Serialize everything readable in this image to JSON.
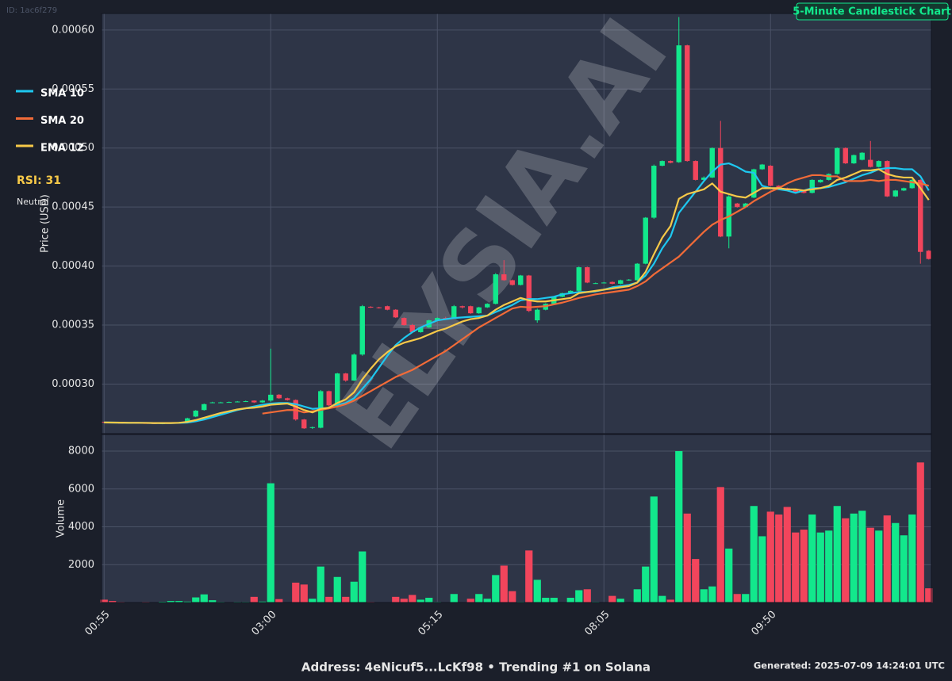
{
  "id_label": "ID: 1ac6f279",
  "watermark": "ELYSIA.AI",
  "indicators": {
    "rsi": "RSI: 31",
    "status": "Neutral"
  },
  "footer": {
    "address": "Address: 4eNicuf5...LcKf98 • Trending #1 on Solana",
    "generated": "Generated: 2025-07-09 14:24:01 UTC"
  },
  "chart_data": [
    {
      "type": "candlestick",
      "title": "5-Minute Candlestick Chart",
      "ylabel": "Price (USD)",
      "legend": "left",
      "grid": true,
      "up_color": "#12e88c",
      "down_color": "#f2455c",
      "categories": [
        "00:55",
        null,
        null,
        null,
        null,
        null,
        null,
        null,
        null,
        null,
        null,
        null,
        null,
        null,
        null,
        null,
        null,
        null,
        null,
        null,
        "03:00",
        null,
        null,
        null,
        null,
        null,
        null,
        null,
        null,
        null,
        null,
        null,
        null,
        null,
        null,
        null,
        null,
        null,
        null,
        null,
        "05:15",
        null,
        null,
        null,
        null,
        null,
        null,
        null,
        null,
        null,
        null,
        null,
        null,
        null,
        null,
        null,
        null,
        null,
        null,
        null,
        "08:05",
        null,
        null,
        null,
        null,
        null,
        null,
        null,
        null,
        null,
        null,
        null,
        null,
        null,
        null,
        null,
        null,
        null,
        null,
        null,
        "09:50",
        null,
        null,
        null,
        null,
        null,
        null,
        null,
        null,
        null,
        null,
        null,
        null,
        null,
        null,
        null,
        null,
        null,
        null,
        null
      ],
      "open": [
        0.000268,
        0.0002675,
        0.0002672,
        0.000267,
        0.0002672,
        0.000267,
        0.0002668,
        0.0002665,
        0.0002668,
        0.0002672,
        0.0002678,
        0.0002725,
        0.000278,
        0.000284,
        0.0002845,
        0.0002845,
        0.000285,
        0.0002852,
        0.000286,
        0.0002845,
        0.000286,
        0.000291,
        0.000288,
        0.0002865,
        0.00027,
        0.000263,
        0.000263,
        0.000294,
        0.000282,
        0.000309,
        0.000303,
        0.000325,
        0.0003655,
        0.000365,
        0.000366,
        0.000363,
        0.000356,
        0.00035,
        0.000344,
        0.000348,
        0.000354,
        0.000356,
        0.000356,
        0.000366,
        0.000366,
        0.00036,
        0.000365,
        0.000368,
        0.000393,
        0.000388,
        0.000384,
        0.000392,
        0.000354,
        0.000363,
        0.000368,
        0.000374,
        0.000377,
        0.000379,
        0.000399,
        0.0003855,
        0.000386,
        0.0003865,
        0.000385,
        0.000388,
        0.000388,
        0.000402,
        0.000441,
        0.000485,
        0.000489,
        0.000488,
        0.000587,
        0.000489,
        0.000473,
        0.000475,
        0.0005,
        0.000425,
        0.000453,
        0.00045,
        0.000458,
        0.000482,
        0.000485,
        0.000468,
        0.000466,
        0.000465,
        0.000464,
        0.000462,
        0.000471,
        0.000473,
        0.000478,
        0.0005,
        0.000487,
        0.00049,
        0.00049,
        0.000484,
        0.000489,
        0.000459,
        0.000464,
        0.000466,
        0.000473,
        0.000413
      ],
      "high": [
        0.000268,
        0.000268,
        0.0002675,
        0.0002675,
        0.0002675,
        0.0002672,
        0.000267,
        0.000267,
        0.0002675,
        0.000268,
        0.0002715,
        0.000278,
        0.0002835,
        0.000285,
        0.000285,
        0.0002852,
        0.0002856,
        0.000286,
        0.0002862,
        0.0002865,
        0.00033,
        0.0002915,
        0.0002885,
        0.000287,
        0.0002705,
        0.000264,
        0.000295,
        0.0002945,
        0.0003095,
        0.0003095,
        0.000326,
        0.000367,
        0.000366,
        0.0003655,
        0.0003665,
        0.0003635,
        0.0003565,
        0.000351,
        0.0003485,
        0.0003545,
        0.0003565,
        0.000357,
        0.000367,
        0.0003665,
        0.0003665,
        0.0003655,
        0.0003685,
        0.000394,
        0.000405,
        0.0003885,
        0.0003925,
        0.0003925,
        0.000364,
        0.0003685,
        0.0003745,
        0.0003775,
        0.0003795,
        0.0003995,
        0.0003995,
        0.000386,
        0.0003865,
        0.000387,
        0.0003885,
        0.000389,
        0.0004025,
        0.0004415,
        0.000486,
        0.0004895,
        0.0004895,
        0.000611,
        0.0005875,
        0.0004895,
        0.000476,
        0.0005005,
        0.000523,
        0.00046,
        0.0004535,
        0.0004535,
        0.0004825,
        0.0004865,
        0.0004855,
        0.0004685,
        0.0004665,
        0.0004655,
        0.0004645,
        0.0004735,
        0.0004735,
        0.0004785,
        0.0005005,
        0.0005005,
        0.0004945,
        0.0004965,
        0.000506,
        0.0004895,
        0.0004895,
        0.0004645,
        0.0004665,
        0.0004735,
        0.0004735,
        0.0004135
      ],
      "low": [
        0.000267,
        0.000267,
        0.000267,
        0.0002668,
        0.0002668,
        0.0002666,
        0.0002662,
        0.000266,
        0.0002665,
        0.000267,
        0.0002675,
        0.000272,
        0.0002775,
        0.0002838,
        0.000284,
        0.0002842,
        0.0002845,
        0.000285,
        0.000284,
        0.0002842,
        0.000285,
        0.0002875,
        0.000286,
        0.000269,
        0.000262,
        0.000262,
        0.0002625,
        0.000281,
        0.0002815,
        0.000302,
        0.0003025,
        0.000324,
        0.0003645,
        0.000364,
        0.0003625,
        0.000356,
        0.0003495,
        0.0003435,
        0.0003435,
        0.0003475,
        0.0003535,
        0.000355,
        0.0003555,
        0.000364,
        0.0003595,
        0.0003595,
        0.0003645,
        0.0003675,
        0.0003875,
        0.0003835,
        0.0003835,
        0.000361,
        0.000352,
        0.0003625,
        0.0003675,
        0.0003735,
        0.0003765,
        0.0003785,
        0.0003855,
        0.000385,
        0.0003855,
        0.0003845,
        0.0003845,
        0.0003875,
        0.0003875,
        0.0004015,
        0.00044,
        0.0004845,
        0.000487,
        0.0004875,
        0.0004885,
        0.0004725,
        0.0004725,
        0.0004745,
        0.0004245,
        0.000415,
        0.0004495,
        0.0004495,
        0.0004575,
        0.0004815,
        0.0004675,
        0.0004655,
        0.0004635,
        0.0004625,
        0.0004615,
        0.0004615,
        0.0004705,
        0.0004725,
        0.0004775,
        0.0004865,
        0.0004865,
        0.0004895,
        0.0004835,
        0.0004835,
        0.0004585,
        0.0004585,
        0.0004635,
        0.0004655,
        0.000402,
        0.0004055
      ],
      "close": [
        0.0002675,
        0.0002672,
        0.000267,
        0.0002672,
        0.000267,
        0.0002668,
        0.0002665,
        0.0002668,
        0.0002672,
        0.0002678,
        0.000271,
        0.0002775,
        0.000283,
        0.0002845,
        0.0002845,
        0.0002848,
        0.0002852,
        0.0002855,
        0.0002845,
        0.000286,
        0.000291,
        0.000288,
        0.0002865,
        0.00027,
        0.0002625,
        0.0002635,
        0.000294,
        0.000282,
        0.000309,
        0.000303,
        0.000325,
        0.000366,
        0.000365,
        0.0003645,
        0.000363,
        0.0003565,
        0.00035,
        0.000344,
        0.000348,
        0.000354,
        0.000356,
        0.0003555,
        0.000366,
        0.000365,
        0.00036,
        0.000365,
        0.000368,
        0.000393,
        0.000388,
        0.000384,
        0.000392,
        0.000362,
        0.000363,
        0.000368,
        0.000374,
        0.000377,
        0.000379,
        0.000399,
        0.000386,
        0.0003855,
        0.000386,
        0.000385,
        0.000388,
        0.0003885,
        0.000402,
        0.000441,
        0.000485,
        0.000489,
        0.0004875,
        0.000587,
        0.000489,
        0.000473,
        0.000475,
        0.0005,
        0.000425,
        0.000459,
        0.00045,
        0.000453,
        0.000482,
        0.000486,
        0.000468,
        0.000466,
        0.000464,
        0.000463,
        0.000462,
        0.000473,
        0.000473,
        0.000478,
        0.0005,
        0.000487,
        0.000494,
        0.000496,
        0.000484,
        0.000489,
        0.000459,
        0.000464,
        0.000466,
        0.000473,
        0.000412,
        0.000406
      ],
      "series": [
        {
          "name": "SMA 10",
          "color": "#1ec8f0",
          "values": [
            0.0002675,
            0.0002674,
            0.0002673,
            0.0002672,
            0.0002672,
            0.0002671,
            0.000267,
            0.000267,
            0.000267,
            0.0002671,
            0.0002674,
            0.0002685,
            0.00027,
            0.000272,
            0.000274,
            0.000276,
            0.000278,
            0.0002795,
            0.000281,
            0.0002825,
            0.0002835,
            0.000284,
            0.000284,
            0.000283,
            0.000281,
            0.000279,
            0.0002795,
            0.0002795,
            0.000282,
            0.000284,
            0.000288,
            0.000296,
            0.000304,
            0.000314,
            0.000324,
            0.000333,
            0.000339,
            0.000344,
            0.000348,
            0.000351,
            0.000354,
            0.000355,
            0.000356,
            0.0003565,
            0.000357,
            0.0003575,
            0.000358,
            0.000361,
            0.000364,
            0.000367,
            0.000371,
            0.000372,
            0.000372,
            0.000373,
            0.000374,
            0.000376,
            0.000377,
            0.000378,
            0.000378,
            0.0003785,
            0.00038,
            0.000382,
            0.000383,
            0.000384,
            0.000386,
            0.000392,
            0.000402,
            0.000415,
            0.000425,
            0.000445,
            0.000454,
            0.000463,
            0.000472,
            0.00048,
            0.000486,
            0.000487,
            0.000484,
            0.00048,
            0.000479,
            0.000468,
            0.000466,
            0.000465,
            0.000464,
            0.000462,
            0.000464,
            0.000466,
            0.000466,
            0.000467,
            0.000469,
            0.000471,
            0.000474,
            0.000477,
            0.000479,
            0.000482,
            0.000483,
            0.000483,
            0.000482,
            0.000482,
            0.000476,
            0.000464
          ]
        },
        {
          "name": "SMA 20",
          "color": "#f26b38",
          "values": [
            null,
            null,
            null,
            null,
            null,
            null,
            null,
            null,
            null,
            null,
            null,
            null,
            null,
            null,
            null,
            null,
            null,
            null,
            null,
            0.000275,
            0.000276,
            0.000277,
            0.000278,
            0.000278,
            0.000276,
            0.000277,
            0.000278,
            0.0002795,
            0.000281,
            0.000283,
            0.000286,
            0.00029,
            0.000294,
            0.000298,
            0.000302,
            0.000306,
            0.000309,
            0.000312,
            0.000316,
            0.00032,
            0.000324,
            0.000328,
            0.000333,
            0.000338,
            0.000343,
            0.000348,
            0.000352,
            0.000356,
            0.00036,
            0.000364,
            0.0003655,
            0.000365,
            0.0003655,
            0.000366,
            0.0003675,
            0.000369,
            0.000371,
            0.000373,
            0.0003745,
            0.000376,
            0.000377,
            0.000378,
            0.000379,
            0.00038,
            0.000383,
            0.000387,
            0.000393,
            0.000398,
            0.000403,
            0.000408,
            0.000415,
            0.000422,
            0.000429,
            0.000435,
            0.000439,
            0.000442,
            0.000446,
            0.00045,
            0.000455,
            0.000459,
            0.000463,
            0.000466,
            0.00047,
            0.000473,
            0.000475,
            0.000477,
            0.000477,
            0.000476,
            0.000476,
            0.000472,
            0.000472,
            0.000472,
            0.000473,
            0.000472,
            0.000473,
            0.000473,
            0.000472,
            0.000471,
            0.00047,
            0.000468
          ]
        },
        {
          "name": "EMA 12",
          "color": "#f7c948",
          "values": [
            0.0002675,
            0.0002674,
            0.0002673,
            0.0002672,
            0.0002672,
            0.0002671,
            0.000267,
            0.000267,
            0.000267,
            0.0002672,
            0.000268,
            0.0002695,
            0.0002715,
            0.0002735,
            0.0002755,
            0.000277,
            0.0002785,
            0.0002795,
            0.00028,
            0.000281,
            0.0002825,
            0.000283,
            0.0002835,
            0.000281,
            0.000278,
            0.000276,
            0.000279,
            0.00028,
            0.000284,
            0.000287,
            0.000293,
            0.000304,
            0.000313,
            0.000321,
            0.000327,
            0.000332,
            0.000335,
            0.000337,
            0.000339,
            0.000342,
            0.000345,
            0.000347,
            0.00035,
            0.000353,
            0.000355,
            0.000356,
            0.000358,
            0.000363,
            0.000367,
            0.00037,
            0.000373,
            0.000371,
            0.00037,
            0.00037,
            0.000371,
            0.000372,
            0.000373,
            0.000377,
            0.000378,
            0.000379,
            0.00038,
            0.000381,
            0.000382,
            0.000383,
            0.000386,
            0.000395,
            0.00041,
            0.000424,
            0.000434,
            0.000457,
            0.000461,
            0.000463,
            0.000465,
            0.00047,
            0.000463,
            0.000461,
            0.000459,
            0.000458,
            0.000462,
            0.000466,
            0.000466,
            0.000466,
            0.000465,
            0.000465,
            0.000464,
            0.000465,
            0.000466,
            0.000468,
            0.000473,
            0.000475,
            0.000478,
            0.000481,
            0.000481,
            0.000482,
            0.000478,
            0.000476,
            0.000475,
            0.000475,
            0.000466,
            0.000456
          ]
        }
      ],
      "ylim": [
        0.000258,
        0.000614
      ],
      "yticks": [
        {
          "value": 0.0003,
          "label": "0.00030"
        },
        0.00035,
        {
          "value": 0.0004,
          "label": "0.00040"
        },
        0.00045,
        {
          "value": 0.0005,
          "label": "0.00050"
        },
        0.00055,
        {
          "value": 0.0006,
          "label": "0.00060"
        }
      ]
    },
    {
      "type": "bar",
      "ylabel": "Volume",
      "grid": true,
      "up_color": "#12e88c",
      "down_color": "#f2455c",
      "values": [
        150,
        80,
        30,
        20,
        20,
        30,
        20,
        40,
        80,
        80,
        50,
        270,
        430,
        120,
        30,
        20,
        30,
        30,
        300,
        50,
        6300,
        180,
        20,
        1050,
        950,
        200,
        1900,
        300,
        1350,
        300,
        1100,
        2700,
        30,
        20,
        20,
        300,
        200,
        400,
        150,
        250,
        30,
        20,
        450,
        20,
        200,
        450,
        200,
        1450,
        1950,
        600,
        30,
        2750,
        1200,
        250,
        250,
        20,
        250,
        650,
        700,
        30,
        20,
        350,
        200,
        20,
        700,
        1900,
        5600,
        350,
        150,
        8000,
        4700,
        2300,
        700,
        850,
        6100,
        2850,
        450,
        450,
        5100,
        3500,
        4800,
        4650,
        5050,
        3700,
        3850,
        4650,
        3700,
        3800,
        5100,
        4450,
        4700,
        4850,
        3950,
        3800,
        4600,
        4200,
        3550,
        4650,
        7400,
        750
      ],
      "ylim": [
        0,
        8880
      ],
      "yticks": [
        2000,
        4000,
        6000,
        8000
      ]
    }
  ]
}
